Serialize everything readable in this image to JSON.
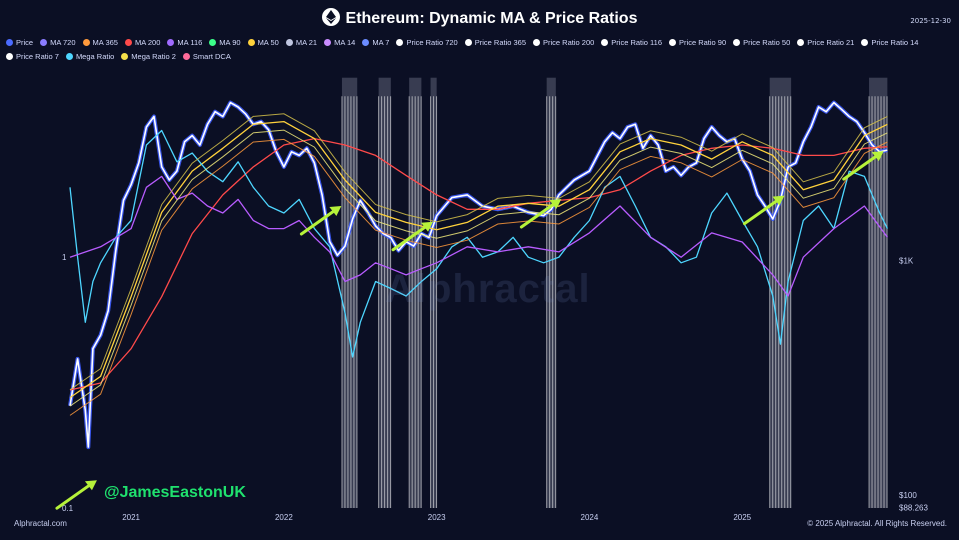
{
  "title": "Ethereum: Dynamic MA & Price Ratios",
  "date": "2025-12-30",
  "legend": [
    {
      "label": "Price",
      "color": "#4b6bff"
    },
    {
      "label": "MA 720",
      "color": "#8a7cff"
    },
    {
      "label": "MA 365",
      "color": "#ff9a3c"
    },
    {
      "label": "MA 200",
      "color": "#ff4a4a"
    },
    {
      "label": "MA 116",
      "color": "#a06bff"
    },
    {
      "label": "MA 90",
      "color": "#3cff8a"
    },
    {
      "label": "MA 50",
      "color": "#ffd23c"
    },
    {
      "label": "MA 21",
      "color": "#c0c6e0"
    },
    {
      "label": "MA 14",
      "color": "#c98cff"
    },
    {
      "label": "MA 7",
      "color": "#6b8cff"
    },
    {
      "label": "Price Ratio 720",
      "color": "#ffffff"
    },
    {
      "label": "Price Ratio 365",
      "color": "#ffffff"
    },
    {
      "label": "Price Ratio 200",
      "color": "#ffffff"
    },
    {
      "label": "Price Ratio 116",
      "color": "#ffffff"
    },
    {
      "label": "Price Ratio 90",
      "color": "#ffffff"
    },
    {
      "label": "Price Ratio 50",
      "color": "#ffffff"
    },
    {
      "label": "Price Ratio 21",
      "color": "#ffffff"
    },
    {
      "label": "Price Ratio 14",
      "color": "#ffffff"
    },
    {
      "label": "Price Ratio 7",
      "color": "#ffffff"
    },
    {
      "label": "Mega Ratio",
      "color": "#4ed6ff"
    },
    {
      "label": "Mega Ratio 2",
      "color": "#f5e04a"
    },
    {
      "label": "Smart DCA",
      "color": "#ff6b9a"
    }
  ],
  "handle": "@JamesEastonUK",
  "watermark": "Alphractal",
  "footer_left": "Alphractal.com",
  "footer_right": "© 2025 Alphractal. All Rights Reserved.",
  "chart_data": {
    "type": "line",
    "title": "Ethereum: Dynamic MA & Price Ratios",
    "y_scale": "log",
    "x_ticks": [
      "2021",
      "2022",
      "2023",
      "2024",
      "2025"
    ],
    "left_ticks": [
      {
        "label": "1",
        "value": 1
      },
      {
        "label": "0.1",
        "value": 0.1
      }
    ],
    "right_ticks": [
      {
        "label": "$1K",
        "value": 1000
      },
      {
        "label": "$100",
        "value": 100
      },
      {
        "label": "$88.263",
        "value": 88.263
      }
    ],
    "x_range": [
      2020.6,
      2026.0
    ],
    "price_range": [
      88,
      7000
    ],
    "ratio_range": [
      0.1,
      6
    ],
    "series": [
      {
        "name": "Price",
        "color": "#ffffff",
        "x": [
          2020.6,
          2020.65,
          2020.7,
          2020.72,
          2020.75,
          2020.8,
          2020.85,
          2020.9,
          2020.95,
          2021.0,
          2021.05,
          2021.1,
          2021.15,
          2021.2,
          2021.25,
          2021.3,
          2021.35,
          2021.4,
          2021.45,
          2021.5,
          2021.55,
          2021.6,
          2021.65,
          2021.7,
          2021.75,
          2021.8,
          2021.85,
          2021.9,
          2021.95,
          2022.0,
          2022.05,
          2022.1,
          2022.15,
          2022.2,
          2022.25,
          2022.3,
          2022.35,
          2022.4,
          2022.45,
          2022.5,
          2022.55,
          2022.6,
          2022.65,
          2022.7,
          2022.75,
          2022.8,
          2022.85,
          2022.9,
          2022.95,
          2023.0,
          2023.1,
          2023.2,
          2023.3,
          2023.4,
          2023.5,
          2023.6,
          2023.7,
          2023.75,
          2023.8,
          2023.9,
          2024.0,
          2024.1,
          2024.15,
          2024.2,
          2024.25,
          2024.3,
          2024.35,
          2024.4,
          2024.45,
          2024.5,
          2024.55,
          2024.6,
          2024.65,
          2024.7,
          2024.75,
          2024.8,
          2024.85,
          2024.9,
          2024.95,
          2025.0,
          2025.05,
          2025.1,
          2025.15,
          2025.2,
          2025.25,
          2025.3,
          2025.35,
          2025.4,
          2025.45,
          2025.5,
          2025.55,
          2025.6,
          2025.65,
          2025.7,
          2025.75,
          2025.8,
          2025.85,
          2025.9,
          2025.95
        ],
        "y": [
          240,
          380,
          230,
          160,
          420,
          480,
          610,
          1100,
          1800,
          2100,
          2600,
          3700,
          4100,
          2500,
          2200,
          2400,
          3200,
          3400,
          3100,
          3800,
          4300,
          4100,
          4700,
          4500,
          4200,
          3800,
          3900,
          3600,
          2900,
          2500,
          2900,
          2800,
          3000,
          2600,
          1900,
          1200,
          1050,
          1150,
          1500,
          1800,
          1600,
          1400,
          1300,
          1250,
          1100,
          1200,
          1150,
          1300,
          1250,
          1550,
          1850,
          1900,
          1700,
          1650,
          1700,
          1600,
          1550,
          1650,
          1900,
          2200,
          2400,
          3200,
          3500,
          3300,
          3700,
          3800,
          3000,
          3400,
          3100,
          2400,
          2500,
          2300,
          2500,
          2600,
          3300,
          3700,
          3400,
          3200,
          3300,
          2700,
          2400,
          1900,
          1700,
          1500,
          1800,
          2500,
          2600,
          3200,
          3700,
          4500,
          4300,
          4700,
          4400,
          4100,
          3900,
          3500,
          3100,
          2900,
          2950
        ]
      },
      {
        "name": "MA 200",
        "color": "#ff4a4a",
        "x": [
          2020.6,
          2020.8,
          2021.0,
          2021.2,
          2021.4,
          2021.6,
          2021.8,
          2022.0,
          2022.2,
          2022.4,
          2022.6,
          2022.8,
          2023.0,
          2023.2,
          2023.4,
          2023.6,
          2023.8,
          2024.0,
          2024.2,
          2024.4,
          2024.6,
          2024.8,
          2025.0,
          2025.2,
          2025.4,
          2025.6,
          2025.8,
          2025.95
        ],
        "y": [
          280,
          300,
          420,
          700,
          1300,
          1900,
          2500,
          3100,
          3300,
          3100,
          2800,
          2300,
          1900,
          1650,
          1650,
          1750,
          1800,
          1850,
          2000,
          2400,
          2800,
          3000,
          3100,
          3000,
          2800,
          2800,
          3000,
          3050
        ]
      },
      {
        "name": "MA 50",
        "color": "#ffd23c",
        "x": [
          2020.6,
          2020.8,
          2021.0,
          2021.2,
          2021.4,
          2021.6,
          2021.8,
          2022.0,
          2022.2,
          2022.4,
          2022.6,
          2022.8,
          2023.0,
          2023.2,
          2023.4,
          2023.6,
          2023.8,
          2024.0,
          2024.2,
          2024.4,
          2024.6,
          2024.8,
          2025.0,
          2025.2,
          2025.4,
          2025.6,
          2025.8,
          2025.95
        ],
        "y": [
          260,
          320,
          700,
          1600,
          2400,
          3000,
          3800,
          3900,
          3300,
          2200,
          1600,
          1450,
          1350,
          1450,
          1700,
          1750,
          1700,
          2000,
          2900,
          3300,
          3100,
          2700,
          3200,
          2800,
          2000,
          2200,
          3400,
          3800
        ]
      },
      {
        "name": "Mega Ratio",
        "color": "#4ed6ff",
        "x": [
          2020.6,
          2020.65,
          2020.7,
          2020.75,
          2020.8,
          2020.9,
          2021.0,
          2021.1,
          2021.2,
          2021.3,
          2021.4,
          2021.5,
          2021.6,
          2021.7,
          2021.8,
          2021.9,
          2022.0,
          2022.1,
          2022.2,
          2022.3,
          2022.4,
          2022.45,
          2022.5,
          2022.6,
          2022.7,
          2022.8,
          2022.9,
          2023.0,
          2023.1,
          2023.2,
          2023.3,
          2023.4,
          2023.5,
          2023.6,
          2023.7,
          2023.8,
          2023.9,
          2024.0,
          2024.1,
          2024.2,
          2024.3,
          2024.4,
          2024.5,
          2024.6,
          2024.7,
          2024.8,
          2024.9,
          2025.0,
          2025.1,
          2025.2,
          2025.25,
          2025.3,
          2025.4,
          2025.5,
          2025.6,
          2025.7,
          2025.8,
          2025.9,
          2025.95
        ],
        "y": [
          1.9,
          1.0,
          0.55,
          0.8,
          0.95,
          1.2,
          1.4,
          2.8,
          3.2,
          2.4,
          2.6,
          2.2,
          2.0,
          2.4,
          1.9,
          1.6,
          1.5,
          1.7,
          1.3,
          1.1,
          0.6,
          0.4,
          0.55,
          0.8,
          0.75,
          0.7,
          0.8,
          0.9,
          1.1,
          1.2,
          1.0,
          1.05,
          1.2,
          1.0,
          0.95,
          1.0,
          1.2,
          1.4,
          1.9,
          2.1,
          1.6,
          1.2,
          1.1,
          0.95,
          1.0,
          1.5,
          1.8,
          1.4,
          1.1,
          0.7,
          0.45,
          0.8,
          1.4,
          1.6,
          1.3,
          2.2,
          2.1,
          1.5,
          1.3
        ]
      },
      {
        "name": "Mega Ratio 2",
        "color": "#b85cff",
        "x": [
          2020.6,
          2020.8,
          2021.0,
          2021.1,
          2021.2,
          2021.3,
          2021.4,
          2021.5,
          2021.6,
          2021.7,
          2021.8,
          2021.9,
          2022.0,
          2022.1,
          2022.2,
          2022.3,
          2022.4,
          2022.5,
          2022.6,
          2022.7,
          2022.8,
          2022.9,
          2023.0,
          2023.2,
          2023.4,
          2023.6,
          2023.8,
          2024.0,
          2024.2,
          2024.4,
          2024.6,
          2024.8,
          2025.0,
          2025.2,
          2025.3,
          2025.4,
          2025.6,
          2025.8,
          2025.95
        ],
        "y": [
          1.0,
          1.1,
          1.3,
          1.9,
          2.1,
          1.7,
          1.8,
          1.6,
          1.5,
          1.7,
          1.4,
          1.3,
          1.3,
          1.4,
          1.2,
          1.05,
          0.8,
          0.85,
          0.95,
          0.9,
          0.85,
          0.9,
          0.95,
          1.1,
          1.05,
          1.1,
          1.05,
          1.25,
          1.6,
          1.2,
          1.0,
          1.25,
          1.15,
          0.85,
          0.7,
          1.0,
          1.3,
          1.6,
          1.2
        ]
      }
    ],
    "buy_zones": [
      {
        "x0": 2022.38,
        "x1": 2022.48
      },
      {
        "x0": 2022.62,
        "x1": 2022.7
      },
      {
        "x0": 2022.82,
        "x1": 2022.9
      },
      {
        "x0": 2022.96,
        "x1": 2023.0
      },
      {
        "x0": 2023.72,
        "x1": 2023.78
      },
      {
        "x0": 2025.18,
        "x1": 2025.32
      },
      {
        "x0": 2025.83,
        "x1": 2025.95
      }
    ],
    "arrows": [
      {
        "x": 2020.58,
        "y": 95
      },
      {
        "x": 2022.18,
        "y": 1400
      },
      {
        "x": 2022.78,
        "y": 1200
      },
      {
        "x": 2023.62,
        "y": 1500
      },
      {
        "x": 2025.08,
        "y": 1550
      },
      {
        "x": 2025.73,
        "y": 2400
      }
    ]
  }
}
